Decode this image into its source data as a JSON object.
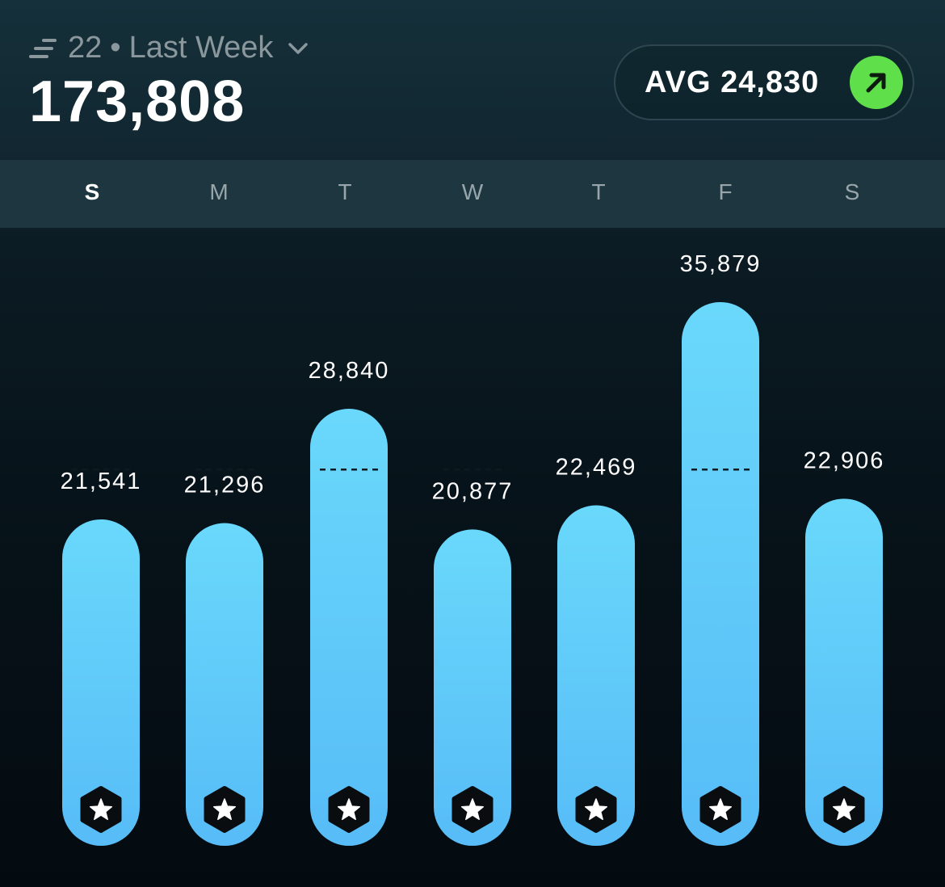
{
  "header": {
    "count": "22",
    "separator": "•",
    "period_label": "Last Week",
    "total": "173,808",
    "avg_label": "AVG 24,830"
  },
  "days": [
    {
      "label": "S",
      "active": true
    },
    {
      "label": "M",
      "active": false
    },
    {
      "label": "T",
      "active": false
    },
    {
      "label": "W",
      "active": false
    },
    {
      "label": "T",
      "active": false
    },
    {
      "label": "F",
      "active": false
    },
    {
      "label": "S",
      "active": false
    }
  ],
  "colors": {
    "bar_top": "#6ad8fb",
    "bar_bottom": "#57bcf7",
    "accent_green": "#5fe04a",
    "muted_text": "#8a979d"
  },
  "icons": {
    "period": "lines-icon",
    "dropdown": "chevron-down-icon",
    "trend": "arrow-up-right-icon",
    "badge": "star-hexagon-icon"
  },
  "chart_data": {
    "type": "bar",
    "categories": [
      "S",
      "M",
      "T",
      "W",
      "T",
      "F",
      "S"
    ],
    "values": [
      21541,
      21296,
      28840,
      20877,
      22469,
      35879,
      22906
    ],
    "value_labels": [
      "21,541",
      "21,296",
      "28,840",
      "20,877",
      "22,469",
      "35,879",
      "22,906"
    ],
    "average": 24830,
    "average_line": "dashed"
  }
}
